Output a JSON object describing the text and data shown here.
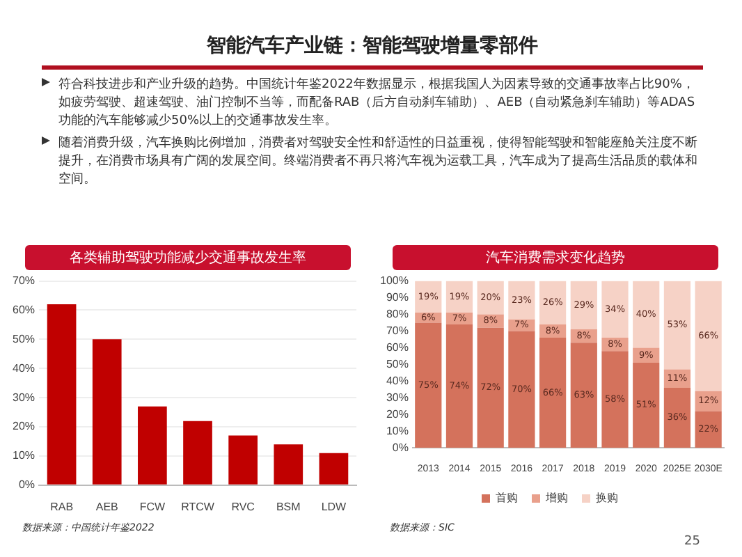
{
  "chart_data": [
    {
      "type": "bar",
      "subtitle": "智能汽车产业链：智能驾驶增量零部件",
      "title": "各类辅助驾驶功能减少交通事故发生率",
      "annotations": [
        "符合科技进步和产业升级的趋势。中国统计年鉴2022年数据显示，根据我国人为因素导致的交通事故率占比90%，如疲劳驾驶、超速驾驶、油门控制不当等，而配备RAB（后方自动刹车辅助）、AEB（自动紧急刹车辅助）等ADAS功能的汽车能够减少50%以上的交通事故发生率。",
        "随着消费升级，汽车换购比例增加，消费者对驾驶安全性和舒适性的日益重视，使得智能驾驶和智能座舱关注度不断提升，在消费市场具有广阔的发展空间。终端消费者不再只将汽车视为运载工具，汽车成为了提高生活品质的载体和空间。",
        "数据来源：中国统计年鉴2022"
      ],
      "categories": [
        "RAB",
        "AEB",
        "FCW",
        "RTCW",
        "RVC",
        "BSM",
        "LDW"
      ],
      "values": [
        62,
        50,
        27,
        22,
        17,
        14,
        11
      ],
      "color": "#c00000",
      "ylim": [
        0,
        70
      ],
      "yticks": [
        {
          "value": 0,
          "label": "0%"
        },
        {
          "value": 10,
          "label": "10%"
        },
        {
          "value": 20,
          "label": "20%"
        },
        {
          "value": 30,
          "label": "30%"
        },
        {
          "value": 40,
          "label": "40%"
        },
        {
          "value": 50,
          "label": "50%"
        },
        {
          "value": 60,
          "label": "60%"
        },
        {
          "value": 70,
          "label": "70%"
        }
      ],
      "grid": "y",
      "legend": false
    },
    {
      "type": "bar",
      "title": "汽车消费需求变化趋势",
      "stacked": true,
      "annotations": [
        "数据来源：SIC",
        "25"
      ],
      "categories": [
        "2013",
        "2014",
        "2015",
        "2016",
        "2017",
        "2018",
        "2019",
        "2020",
        "2025E",
        "2030E"
      ],
      "series": [
        {
          "name": "首购",
          "color": "#d4725c",
          "values": [
            75,
            74,
            72,
            70,
            66,
            63,
            58,
            51,
            36,
            22
          ],
          "value_labels": [
            "75%",
            "74%",
            "72%",
            "70%",
            "66%",
            "63%",
            "58%",
            "51%",
            "36%",
            "22%"
          ]
        },
        {
          "name": "增购",
          "color": "#e9a08c",
          "values": [
            6,
            7,
            8,
            7,
            8,
            8,
            8,
            9,
            11,
            12
          ],
          "value_labels": [
            "6%",
            "7%",
            "8%",
            "7%",
            "8%",
            "8%",
            "8%",
            "9%",
            "11%",
            "12%"
          ]
        },
        {
          "name": "换购",
          "color": "#f6d2c6",
          "values": [
            19,
            19,
            20,
            23,
            26,
            29,
            34,
            40,
            53,
            66
          ],
          "value_labels": [
            "19%",
            "19%",
            "20%",
            "23%",
            "26%",
            "29%",
            "34%",
            "40%",
            "53%",
            "66%"
          ]
        }
      ],
      "ylim": [
        0,
        100
      ],
      "yticks": [
        {
          "value": 0,
          "label": "0%"
        },
        {
          "value": 10,
          "label": "10%"
        },
        {
          "value": 20,
          "label": "20%"
        },
        {
          "value": 30,
          "label": "30%"
        },
        {
          "value": 40,
          "label": "40%"
        },
        {
          "value": 50,
          "label": "50%"
        },
        {
          "value": 60,
          "label": "60%"
        },
        {
          "value": 70,
          "label": "70%"
        },
        {
          "value": 80,
          "label": "80%"
        },
        {
          "value": 90,
          "label": "90%"
        },
        {
          "value": 100,
          "label": "100%"
        }
      ],
      "grid": false,
      "legend": "bottom"
    }
  ]
}
